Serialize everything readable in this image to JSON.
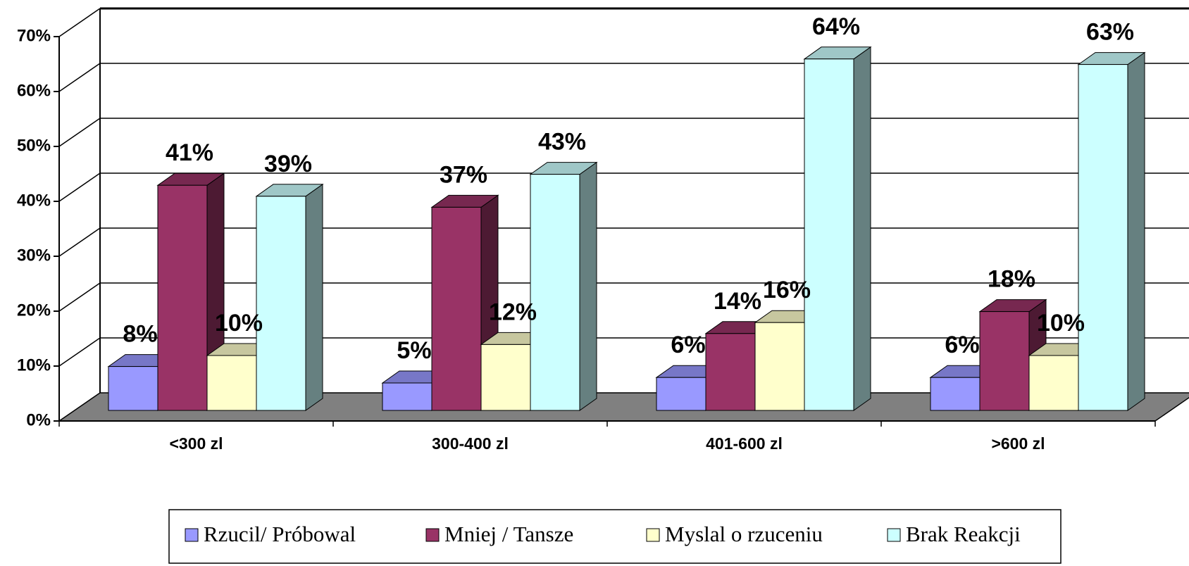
{
  "chart_data": {
    "type": "bar",
    "categories": [
      "<300 zl",
      "300-400 zl",
      "401-600 zl",
      ">600 zl"
    ],
    "series": [
      {
        "name": "Rzucil/ Próbowal",
        "color": "#9999ff",
        "values": [
          8,
          5,
          6,
          6
        ],
        "value_labels": [
          "8%",
          "5%",
          "6%",
          "6%"
        ]
      },
      {
        "name": "Mniej / Tansze",
        "color": "#993366",
        "values": [
          41,
          37,
          14,
          18
        ],
        "value_labels": [
          "41%",
          "37%",
          "14%",
          "18%"
        ]
      },
      {
        "name": "Myslal o rzuceniu",
        "color": "#ffffcc",
        "values": [
          10,
          12,
          16,
          10
        ],
        "value_labels": [
          "10%",
          "12%",
          "16%",
          "10%"
        ]
      },
      {
        "name": "Brak Reakcji",
        "color": "#ccffff",
        "values": [
          39,
          43,
          64,
          63
        ],
        "value_labels": [
          "39%",
          "43%",
          "64%",
          "63%"
        ]
      }
    ],
    "ylim": [
      0,
      70
    ],
    "yticks": [
      {
        "value": 0,
        "label": "0%"
      },
      {
        "value": 10,
        "label": "10%"
      },
      {
        "value": 20,
        "label": "20%"
      },
      {
        "value": 30,
        "label": "30%"
      },
      {
        "value": 40,
        "label": "40%"
      },
      {
        "value": 50,
        "label": "50%"
      },
      {
        "value": 60,
        "label": "60%"
      },
      {
        "value": 70,
        "label": "70%"
      }
    ],
    "grid": true,
    "legend": "bottom"
  }
}
